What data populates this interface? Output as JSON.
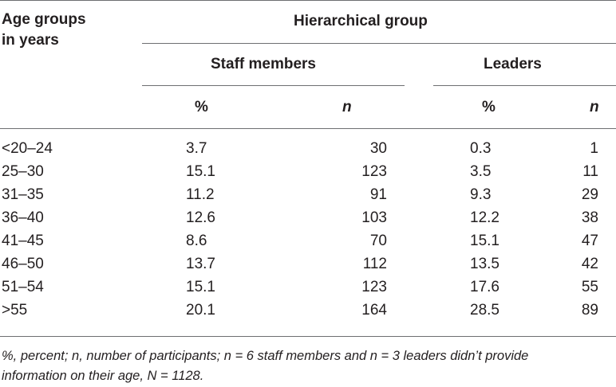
{
  "table": {
    "header": {
      "age_label_line1": "Age groups",
      "age_label_line2": "in years",
      "group_label": "Hierarchical group",
      "staff_label": "Staff members",
      "leaders_label": "Leaders",
      "pct_label": "%",
      "n_label": "n"
    },
    "rows": [
      {
        "age": "<20–24",
        "staff_pct": "3.7",
        "staff_n": "30",
        "leaders_pct": "0.3",
        "leaders_n": "1"
      },
      {
        "age": "25–30",
        "staff_pct": "15.1",
        "staff_n": "123",
        "leaders_pct": "3.5",
        "leaders_n": "11"
      },
      {
        "age": "31–35",
        "staff_pct": "11.2",
        "staff_n": "91",
        "leaders_pct": "9.3",
        "leaders_n": "29"
      },
      {
        "age": "36–40",
        "staff_pct": "12.6",
        "staff_n": "103",
        "leaders_pct": "12.2",
        "leaders_n": "38"
      },
      {
        "age": "41–45",
        "staff_pct": "8.6",
        "staff_n": "70",
        "leaders_pct": "15.1",
        "leaders_n": "47"
      },
      {
        "age": "46–50",
        "staff_pct": "13.7",
        "staff_n": "112",
        "leaders_pct": "13.5",
        "leaders_n": "42"
      },
      {
        "age": "51–54",
        "staff_pct": "15.1",
        "staff_n": "123",
        "leaders_pct": "17.6",
        "leaders_n": "55"
      },
      {
        "age": ">55",
        "staff_pct": "20.1",
        "staff_n": "164",
        "leaders_pct": "28.5",
        "leaders_n": "89"
      }
    ],
    "footnote": "%, percent; n, number of participants; n = 6 staff members and n = 3 leaders didn’t provide information on their age, N = 1128."
  }
}
